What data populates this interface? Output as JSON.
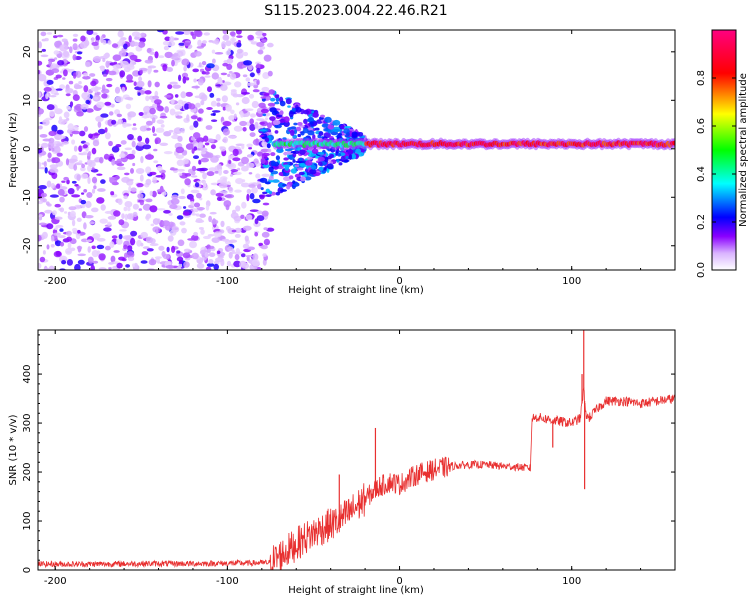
{
  "title": "S115.2023.004.22.46.R21",
  "chart_data": [
    {
      "type": "heatmap",
      "xlabel": "Height of straight line (km)",
      "ylabel": "Frequency (Hz)",
      "xlim": [
        -210,
        160
      ],
      "ylim": [
        -25,
        24.5
      ],
      "xticks": [
        -200,
        -100,
        0,
        100
      ],
      "yticks": [
        -20,
        -10,
        0,
        10,
        20
      ],
      "colorbar": {
        "label": "Normalized spectral amplitude",
        "range": [
          0,
          1
        ],
        "ticks": [
          "0.0",
          "0.2",
          "0.4",
          "0.6",
          "0.8"
        ],
        "tick_values": [
          0,
          0.2,
          0.4,
          0.6,
          0.8
        ],
        "colormap": [
          "#ffffff",
          "#8a00ff",
          "#0000ff",
          "#00ffff",
          "#00ff00",
          "#ffff00",
          "#ff0000",
          "#ff0080"
        ]
      },
      "regions": [
        {
          "x_range": [
            -210,
            -75
          ],
          "frequency_range": [
            -25,
            24.5
          ],
          "description_value": 0.15
        },
        {
          "x_range": [
            -75,
            -20
          ],
          "frequency_range": [
            -8,
            12
          ],
          "description_value": 0.35
        },
        {
          "x_range": [
            -20,
            160
          ],
          "frequency_center": 1,
          "frequency_halfwidth": 1,
          "description_value": 0.9
        }
      ]
    },
    {
      "type": "line",
      "xlabel": "Height of straight line (km)",
      "ylabel": "SNR (10 * v/v)",
      "xlim": [
        -210,
        160
      ],
      "ylim": [
        0,
        490
      ],
      "xticks": [
        -200,
        -100,
        0,
        100
      ],
      "yticks": [
        0,
        100,
        200,
        300,
        400
      ],
      "grid": false,
      "color": "#e83030",
      "series": [
        {
          "x": [
            -210,
            -180,
            -150,
            -120,
            -90,
            -75,
            -65,
            -55,
            -45,
            -35,
            -28,
            -20,
            -12,
            -5,
            0,
            10,
            20,
            30,
            40,
            50,
            60,
            70,
            76,
            77,
            80,
            90,
            100,
            105,
            107,
            108,
            110,
            115,
            120,
            130,
            140,
            150,
            160
          ],
          "y": [
            12,
            12,
            13,
            13,
            14,
            15,
            40,
            65,
            85,
            100,
            120,
            145,
            170,
            180,
            175,
            195,
            205,
            212,
            215,
            215,
            212,
            210,
            208,
            310,
            312,
            305,
            300,
            310,
            370,
            320,
            310,
            330,
            345,
            345,
            340,
            345,
            350
          ]
        }
      ],
      "spikes": [
        {
          "x": -14,
          "y": 290
        },
        {
          "x": -35,
          "y": 195
        },
        {
          "x": 106,
          "y": 400
        },
        {
          "x": 107,
          "y": 490
        },
        {
          "x": 107.5,
          "y": 165
        },
        {
          "x": 89,
          "y": 250
        }
      ]
    }
  ]
}
